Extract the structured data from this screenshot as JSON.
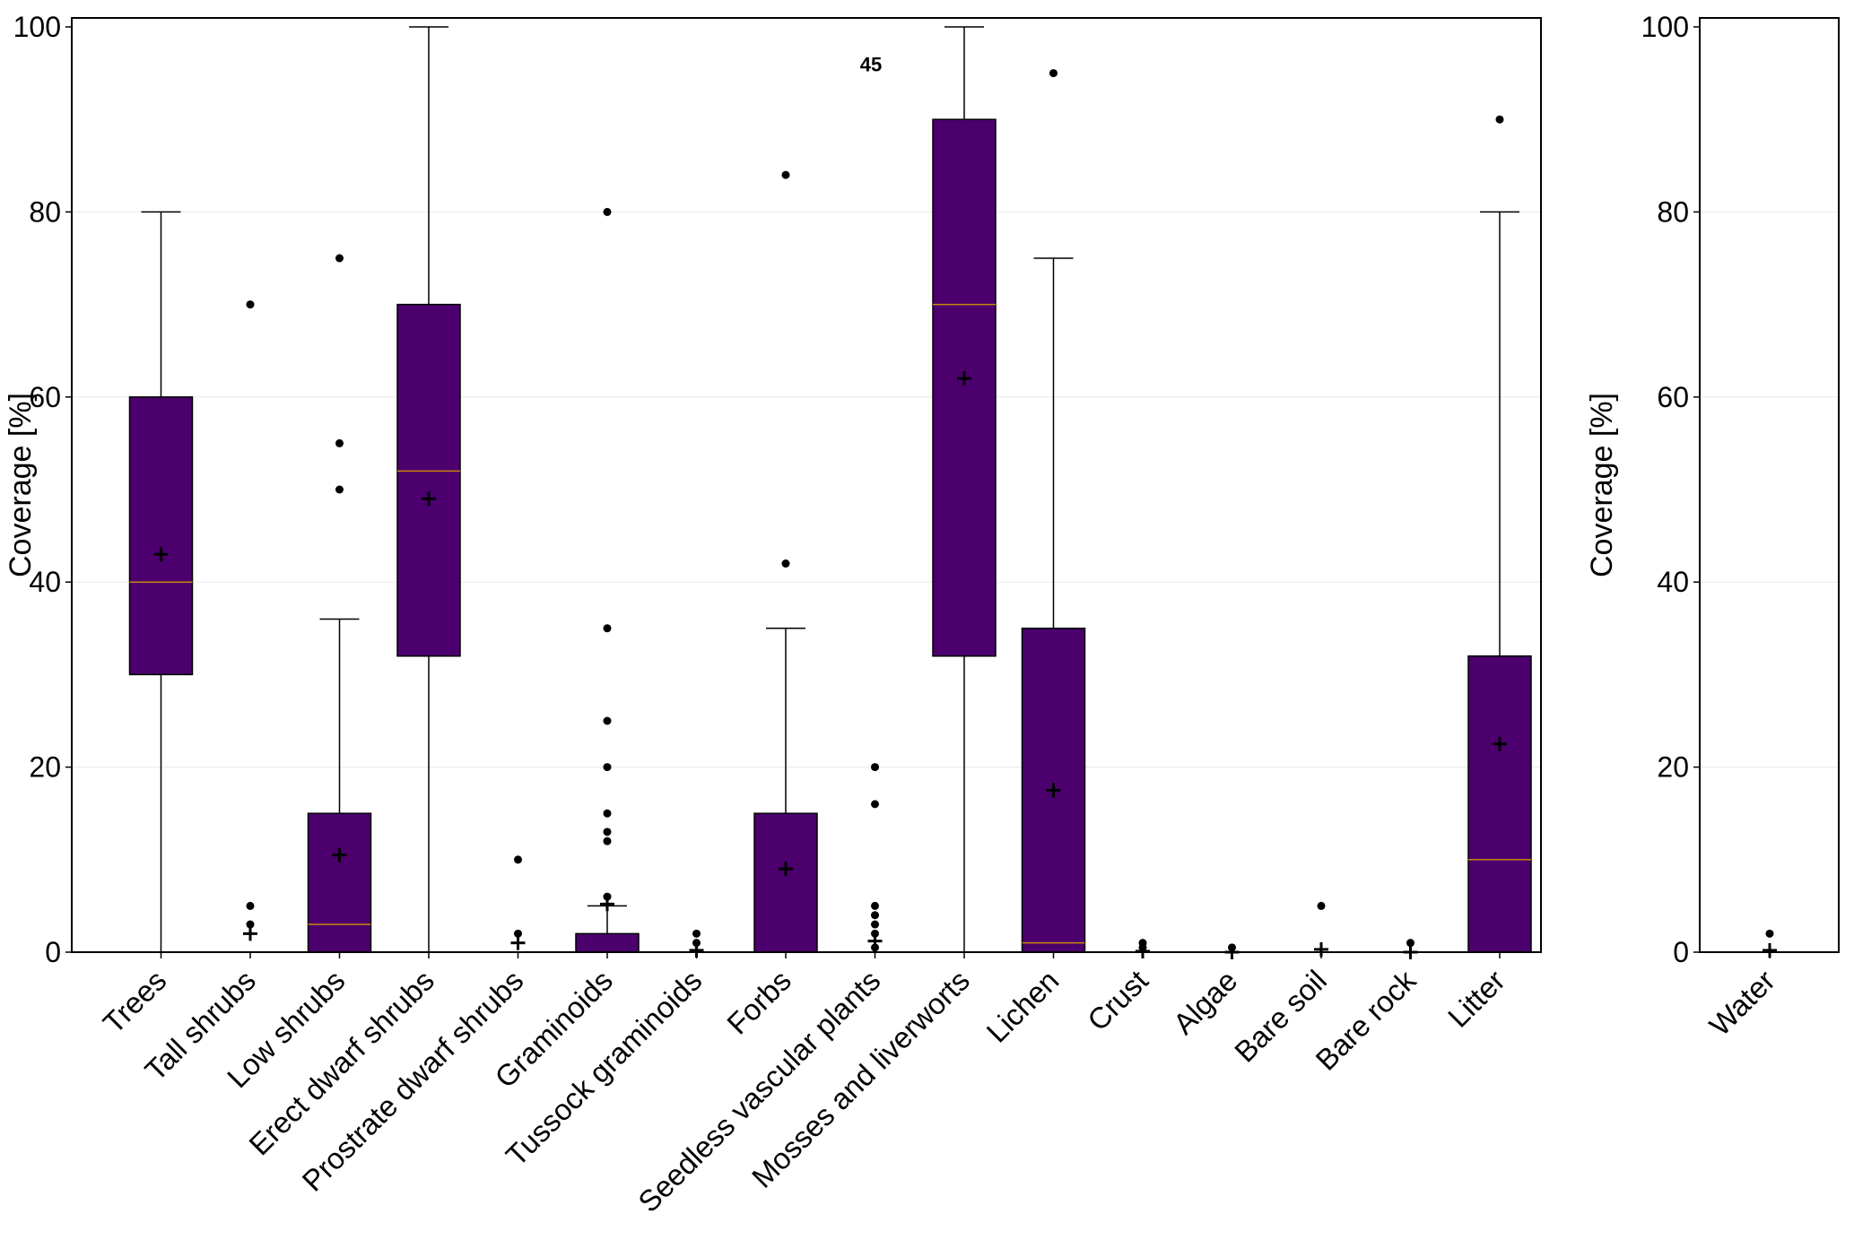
{
  "chart_data": [
    {
      "type": "box",
      "ylabel": "Coverage [%]",
      "ylim": [
        0,
        100
      ],
      "yticks": [
        0,
        20,
        40,
        60,
        80,
        100
      ],
      "grid": "horizontal, faint",
      "box_color": "#4b006e",
      "median_color": "#c8860a",
      "annotation": "45",
      "categories": [
        "Trees",
        "Tall shrubs",
        "Low shrubs",
        "Erect dwarf shrubs",
        "Prostrate dwarf shrubs",
        "Graminoids",
        "Tussock graminoids",
        "Forbs",
        "Seedless vascular plants",
        "Mosses and liverworts",
        "Lichen",
        "Crust",
        "Algae",
        "Bare soil",
        "Bare rock",
        "Litter"
      ],
      "boxes": [
        {
          "q1": 30,
          "median": 40,
          "q3": 60,
          "whisker_low": 0,
          "whisker_high": 80,
          "mean": 43,
          "outliers": []
        },
        {
          "q1": 0,
          "median": 0,
          "q3": 0,
          "whisker_low": 0,
          "whisker_high": 0,
          "mean": 2,
          "outliers": [
            3,
            5,
            70
          ]
        },
        {
          "q1": 0,
          "median": 3,
          "q3": 15,
          "whisker_low": 0,
          "whisker_high": 36,
          "mean": 10.5,
          "outliers": [
            50,
            55,
            75
          ]
        },
        {
          "q1": 32,
          "median": 52,
          "q3": 70,
          "whisker_low": 0,
          "whisker_high": 100,
          "mean": 49,
          "outliers": []
        },
        {
          "q1": 0,
          "median": 0,
          "q3": 0,
          "whisker_low": 0,
          "whisker_high": 0,
          "mean": 1,
          "outliers": [
            2,
            10
          ]
        },
        {
          "q1": 0,
          "median": 0,
          "q3": 2,
          "whisker_low": 0,
          "whisker_high": 5,
          "mean": 5.2,
          "outliers": [
            6,
            12,
            13,
            15,
            20,
            25,
            35,
            80
          ]
        },
        {
          "q1": 0,
          "median": 0,
          "q3": 0,
          "whisker_low": 0,
          "whisker_high": 0,
          "mean": 0.2,
          "outliers": [
            1,
            2
          ]
        },
        {
          "q1": 0,
          "median": 0,
          "q3": 15,
          "whisker_low": 0,
          "whisker_high": 35,
          "mean": 9,
          "outliers": [
            42,
            84
          ]
        },
        {
          "q1": 0,
          "median": 0,
          "q3": 0,
          "whisker_low": 0,
          "whisker_high": 0,
          "mean": 1.2,
          "outliers": [
            0.5,
            2,
            3,
            4,
            5,
            16,
            20
          ]
        },
        {
          "q1": 32,
          "median": 70,
          "q3": 90,
          "whisker_low": 0,
          "whisker_high": 100,
          "mean": 62,
          "outliers": []
        },
        {
          "q1": 0,
          "median": 1,
          "q3": 35,
          "whisker_low": 0,
          "whisker_high": 75,
          "mean": 17.5,
          "outliers": [
            95
          ]
        },
        {
          "q1": 0,
          "median": 0,
          "q3": 0,
          "whisker_low": 0,
          "whisker_high": 0,
          "mean": 0.1,
          "outliers": [
            0.5,
            1
          ]
        },
        {
          "q1": 0,
          "median": 0,
          "q3": 0,
          "whisker_low": 0,
          "whisker_high": 0,
          "mean": 0,
          "outliers": [
            0.5
          ]
        },
        {
          "q1": 0,
          "median": 0,
          "q3": 0,
          "whisker_low": 0,
          "whisker_high": 0,
          "mean": 0.3,
          "outliers": [
            5
          ]
        },
        {
          "q1": 0,
          "median": 0,
          "q3": 0,
          "whisker_low": 0,
          "whisker_high": 0,
          "mean": 0,
          "outliers": [
            1
          ]
        },
        {
          "q1": 0,
          "median": 10,
          "q3": 32,
          "whisker_low": 0,
          "whisker_high": 80,
          "mean": 22.5,
          "outliers": [
            90
          ]
        }
      ]
    },
    {
      "type": "box",
      "ylabel": "Coverage [%]",
      "ylim": [
        0,
        100
      ],
      "yticks": [
        0,
        20,
        40,
        60,
        80,
        100
      ],
      "grid": "horizontal, faint",
      "categories": [
        "Water"
      ],
      "boxes": [
        {
          "q1": 0,
          "median": 0,
          "q3": 0,
          "whisker_low": 0,
          "whisker_high": 0,
          "mean": 0.2,
          "outliers": [
            2
          ]
        }
      ]
    }
  ]
}
